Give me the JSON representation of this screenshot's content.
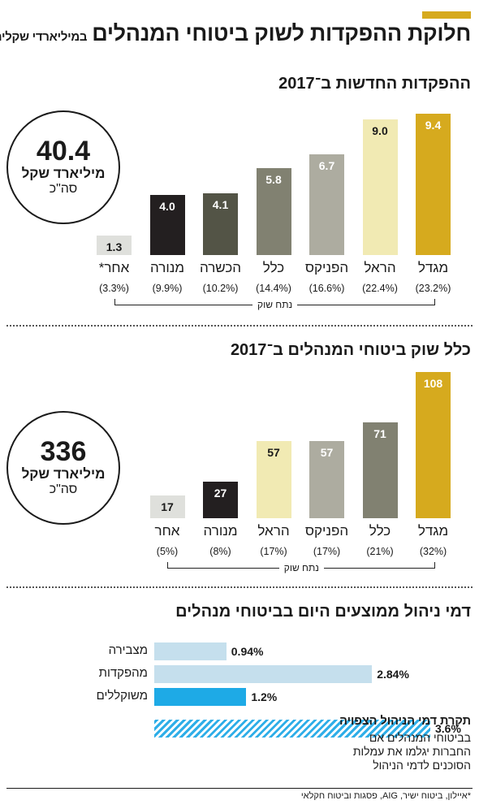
{
  "header": {
    "title": "חלוקת ההפקדות לשוק ביטוחי המנהלים",
    "unit": "במיליארדי שקלים",
    "accent_color": "#d6aa1e"
  },
  "sections": {
    "deposits": {
      "title": "ההפקדות החדשות ב־2017",
      "total": {
        "value": "40.4",
        "unit": "מיליארד שקל",
        "caption": "סה\"כ"
      },
      "share_caption": "נתח שוק"
    },
    "market": {
      "title": "כלל שוק ביטוחי המנהלים ב־2017",
      "total": {
        "value": "336",
        "unit": "מיליארד שקל",
        "caption": "סה\"כ"
      },
      "share_caption": "נתח שוק"
    },
    "fees": {
      "title": "דמי ניהול ממוצעים היום בביטוחי מנהלים",
      "expected_title": "תקרת דמי הניהול הצפויה",
      "expected_text": "בביטוחי המנהלים אם החברות יגלמו את עמלות הסוכנים לדמי הניהול"
    }
  },
  "footnote": "*איילון, ביטוח ישיר, AIG, פסגות וביטוח חקלאי",
  "chart_data": [
    {
      "type": "bar",
      "title": "ההפקדות החדשות ב־2017",
      "categories": [
        "מגדל",
        "הראל",
        "הפניקס",
        "כלל",
        "הכשרה",
        "מנורה",
        "אחר*"
      ],
      "values": [
        9.4,
        9.0,
        6.7,
        5.8,
        4.1,
        4.0,
        1.3
      ],
      "labels": [
        "9.4",
        "9.0",
        "6.7",
        "5.8",
        "4.1",
        "4.0",
        "1.3"
      ],
      "shares": [
        "(23.2%)",
        "(22.4%)",
        "(16.6%)",
        "(14.4%)",
        "(10.2%)",
        "(9.9%)",
        "(3.3%)"
      ],
      "colors": [
        "#d6aa1e",
        "#f1eab3",
        "#adaca0",
        "#818171",
        "#535446",
        "#231f20",
        "#dfe0dc"
      ],
      "label_colors": [
        "#ffffff",
        "#1a1a1a",
        "#ffffff",
        "#ffffff",
        "#ffffff",
        "#ffffff",
        "#1a1a1a"
      ],
      "ylim": [
        0,
        9.4
      ]
    },
    {
      "type": "bar",
      "title": "כלל שוק ביטוחי המנהלים ב־2017",
      "categories": [
        "מגדל",
        "כלל",
        "הפניקס",
        "הראל",
        "מנורה",
        "אחר"
      ],
      "values": [
        108,
        71,
        57,
        57,
        27,
        17
      ],
      "labels": [
        "108",
        "71",
        "57",
        "57",
        "27",
        "17"
      ],
      "shares": [
        "(32%)",
        "(21%)",
        "(17%)",
        "(17%)",
        "(8%)",
        "(5%)"
      ],
      "colors": [
        "#d6aa1e",
        "#818171",
        "#adaca0",
        "#f1eab3",
        "#231f20",
        "#dfe0dc"
      ],
      "label_colors": [
        "#ffffff",
        "#ffffff",
        "#ffffff",
        "#1a1a1a",
        "#ffffff",
        "#1a1a1a"
      ],
      "ylim": [
        0,
        108
      ]
    },
    {
      "type": "bar",
      "orientation": "horizontal",
      "title": "דמי ניהול ממוצעים היום בביטוחי מנהלים",
      "categories": [
        "מצבירה",
        "מהפקדות",
        "משוקללים",
        "תקרת דמי הניהול הצפויה"
      ],
      "values": [
        0.94,
        2.84,
        1.2,
        3.6
      ],
      "labels": [
        "0.94%",
        "2.84%",
        "1.2%",
        "3.6%"
      ],
      "colors": [
        "#c5dfed",
        "#c5dfed",
        "#1eaae6",
        "hatch"
      ],
      "ylim": [
        0,
        3.6
      ]
    }
  ]
}
